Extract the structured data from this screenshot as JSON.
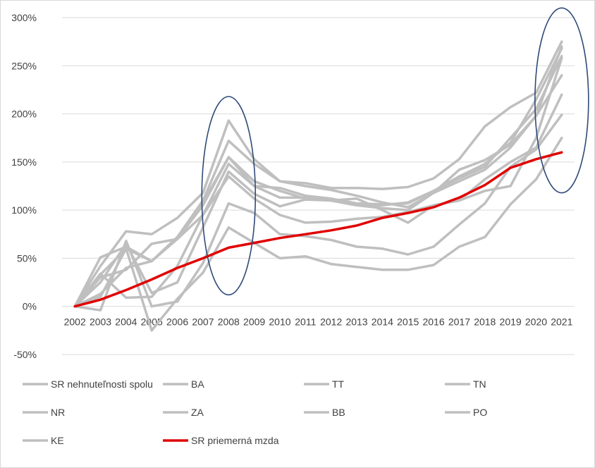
{
  "chart_data": {
    "type": "line",
    "title": "",
    "xlabel": "",
    "ylabel": "",
    "x": [
      "2002",
      "2003",
      "2004",
      "2005",
      "2006",
      "2007",
      "2008",
      "2009",
      "2010",
      "2011",
      "2012",
      "2013",
      "2014",
      "2015",
      "2016",
      "2017",
      "2018",
      "2019",
      "2020",
      "2021"
    ],
    "ylim": [
      -0.5,
      3.0
    ],
    "yticks": [
      -0.5,
      0,
      0.5,
      1.0,
      1.5,
      2.0,
      2.5,
      3.0
    ],
    "ytick_labels": [
      "-50%",
      "0%",
      "50%",
      "100%",
      "150%",
      "200%",
      "250%",
      "300%"
    ],
    "grid": "horizontal",
    "legend_position": "bottom",
    "colors": {
      "property": "#bfbfbf",
      "wage": "#e00000",
      "ellipse": "#2f4a78",
      "grid": "#d9d9d9"
    },
    "series": [
      {
        "name": "SR nehnuteľnosti spolu",
        "values": [
          0,
          0.33,
          0.6,
          0.47,
          0.72,
          1.08,
          1.55,
          1.25,
          1.23,
          1.15,
          1.12,
          1.07,
          1.06,
          1.07,
          1.2,
          1.33,
          1.45,
          1.75,
          2.05,
          2.6
        ]
      },
      {
        "name": "BA",
        "values": [
          0,
          0.51,
          0.62,
          0.47,
          0.72,
          1.1,
          1.72,
          1.48,
          1.3,
          1.28,
          1.23,
          1.23,
          1.22,
          1.24,
          1.33,
          1.53,
          1.87,
          2.07,
          2.22,
          2.75
        ]
      },
      {
        "name": "TT",
        "values": [
          0,
          0.42,
          0.78,
          0.75,
          0.92,
          1.18,
          1.93,
          1.53,
          1.3,
          1.25,
          1.21,
          1.15,
          1.08,
          1.03,
          1.18,
          1.42,
          1.52,
          1.68,
          1.98,
          2.4
        ]
      },
      {
        "name": "TN",
        "values": [
          0,
          0.3,
          0.38,
          0.65,
          0.7,
          1.05,
          1.55,
          1.3,
          1.2,
          1.12,
          1.1,
          1.05,
          1.02,
          1.0,
          1.18,
          1.3,
          1.42,
          1.65,
          1.98,
          2.7
        ]
      },
      {
        "name": "NR",
        "values": [
          0,
          0.25,
          0.65,
          0.14,
          0.25,
          0.82,
          1.4,
          1.17,
          1.04,
          1.11,
          1.1,
          1.12,
          1.0,
          0.87,
          1.05,
          1.1,
          1.32,
          1.5,
          1.65,
          2.2
        ]
      },
      {
        "name": "ZA",
        "values": [
          0,
          0.13,
          0.4,
          0.47,
          0.7,
          0.95,
          1.35,
          1.12,
          0.95,
          0.87,
          0.88,
          0.91,
          0.93,
          0.98,
          1.05,
          1.1,
          1.2,
          1.25,
          1.75,
          2.58
        ]
      },
      {
        "name": "BB",
        "values": [
          0,
          -0.04,
          0.68,
          0.0,
          0.05,
          0.45,
          1.07,
          0.97,
          0.75,
          0.73,
          0.69,
          0.62,
          0.6,
          0.54,
          0.62,
          0.85,
          1.07,
          1.45,
          1.63,
          1.99
        ]
      },
      {
        "name": "PO",
        "values": [
          0,
          0.1,
          0.6,
          -0.25,
          0.08,
          0.35,
          0.82,
          0.66,
          0.5,
          0.52,
          0.44,
          0.41,
          0.38,
          0.38,
          0.43,
          0.62,
          0.72,
          1.06,
          1.32,
          1.75
        ]
      },
      {
        "name": "KE",
        "values": [
          0,
          0.34,
          0.09,
          0.1,
          0.42,
          0.95,
          1.48,
          1.25,
          1.13,
          1.13,
          1.1,
          1.05,
          1.05,
          1.08,
          1.2,
          1.35,
          1.48,
          1.7,
          2.15,
          2.68
        ]
      },
      {
        "name": "SR priemerná mzda",
        "values": [
          0,
          0.07,
          0.17,
          0.28,
          0.4,
          0.5,
          0.61,
          0.66,
          0.71,
          0.75,
          0.79,
          0.84,
          0.92,
          0.97,
          1.03,
          1.13,
          1.26,
          1.44,
          1.53,
          1.6
        ]
      }
    ],
    "annotations": [
      {
        "shape": "ellipse",
        "around_year": "2008",
        "y_range": [
          0.12,
          2.18
        ]
      },
      {
        "shape": "ellipse",
        "around_year": "2021",
        "y_range": [
          1.18,
          3.1
        ]
      }
    ]
  }
}
